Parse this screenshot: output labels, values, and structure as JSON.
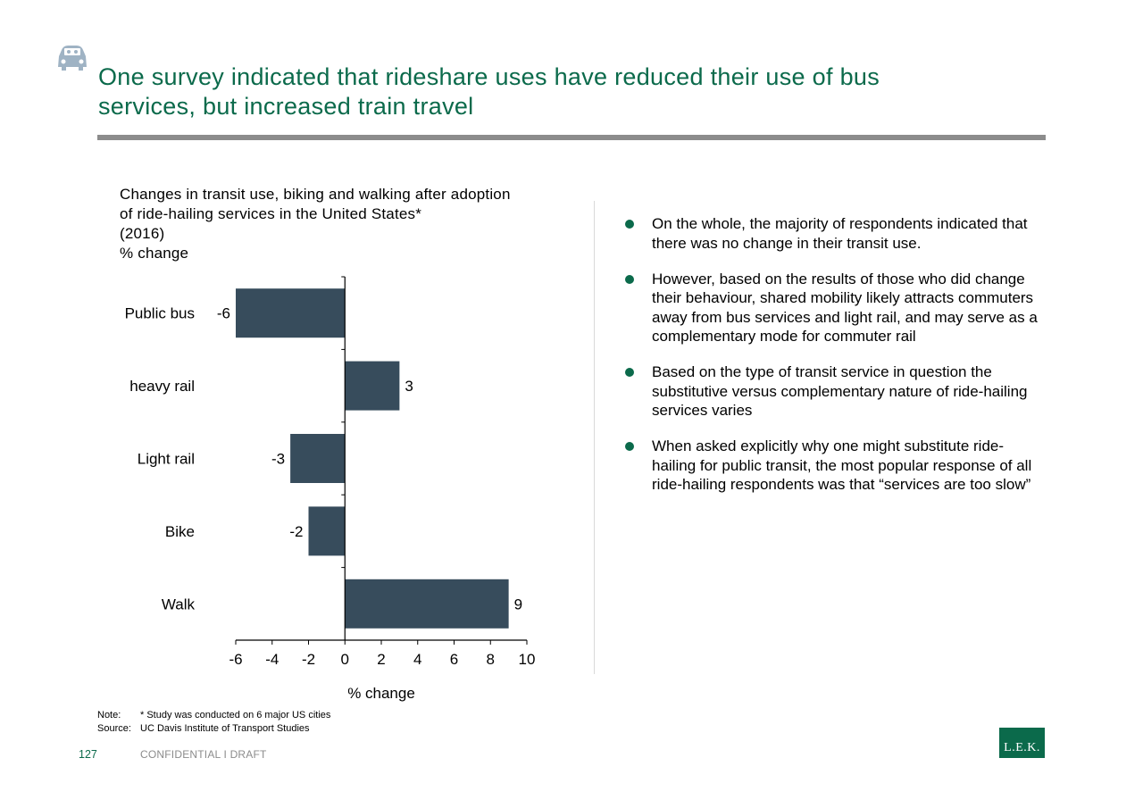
{
  "header": {
    "icon": "car-icon",
    "title_line1": "One survey indicated that rideshare uses have reduced their use of bus",
    "title_line2": "services, but increased train travel"
  },
  "chart_title_lines": [
    "Changes in transit use, biking and walking after adoption",
    "of ride-hailing services in the United States*",
    "(2016)",
    "% change"
  ],
  "chart_data": {
    "type": "bar",
    "orientation": "horizontal",
    "title": "Changes in transit use, biking and walking after adoption of ride-hailing services in the United States* (2016)",
    "ylabel": "% change",
    "xlabel": "% change",
    "categories": [
      "Public bus",
      "heavy rail",
      "Light rail",
      "Bike",
      "Walk"
    ],
    "values": [
      -6,
      3,
      -3,
      -2,
      9
    ],
    "xlim": [
      -6,
      10
    ],
    "xticks": [
      -6,
      -4,
      -2,
      0,
      2,
      4,
      6,
      8,
      10
    ],
    "bar_color": "#374c5c",
    "grid": false,
    "legend": "none"
  },
  "bullets": [
    "On the whole, the majority of respondents indicated that there was no change in their transit use.",
    "However, based on the results of those who did change their behaviour, shared mobility likely attracts commuters away from bus services and light rail, and may serve as a complementary mode for commuter rail",
    "Based on the type of transit service in question the substitutive versus complementary nature of ride-hailing services varies",
    "When asked explicitly why one might substitute ride-hailing for public transit, the most popular response of all ride-hailing respondents was that “services are too slow”"
  ],
  "footer": {
    "note_label": "Note:",
    "note_text": "* Study was conducted on 6 major US cities",
    "source_label": "Source:",
    "source_text": "UC Davis Institute of Transport Studies",
    "page_number": "127",
    "confidential": "CONFIDENTIAL I DRAFT",
    "logo_text": "L.E.K."
  },
  "colors": {
    "accent": "#0b6a4b",
    "rule": "#8c8c8c",
    "bar": "#374c5c",
    "icon": "#9fb3c4"
  }
}
